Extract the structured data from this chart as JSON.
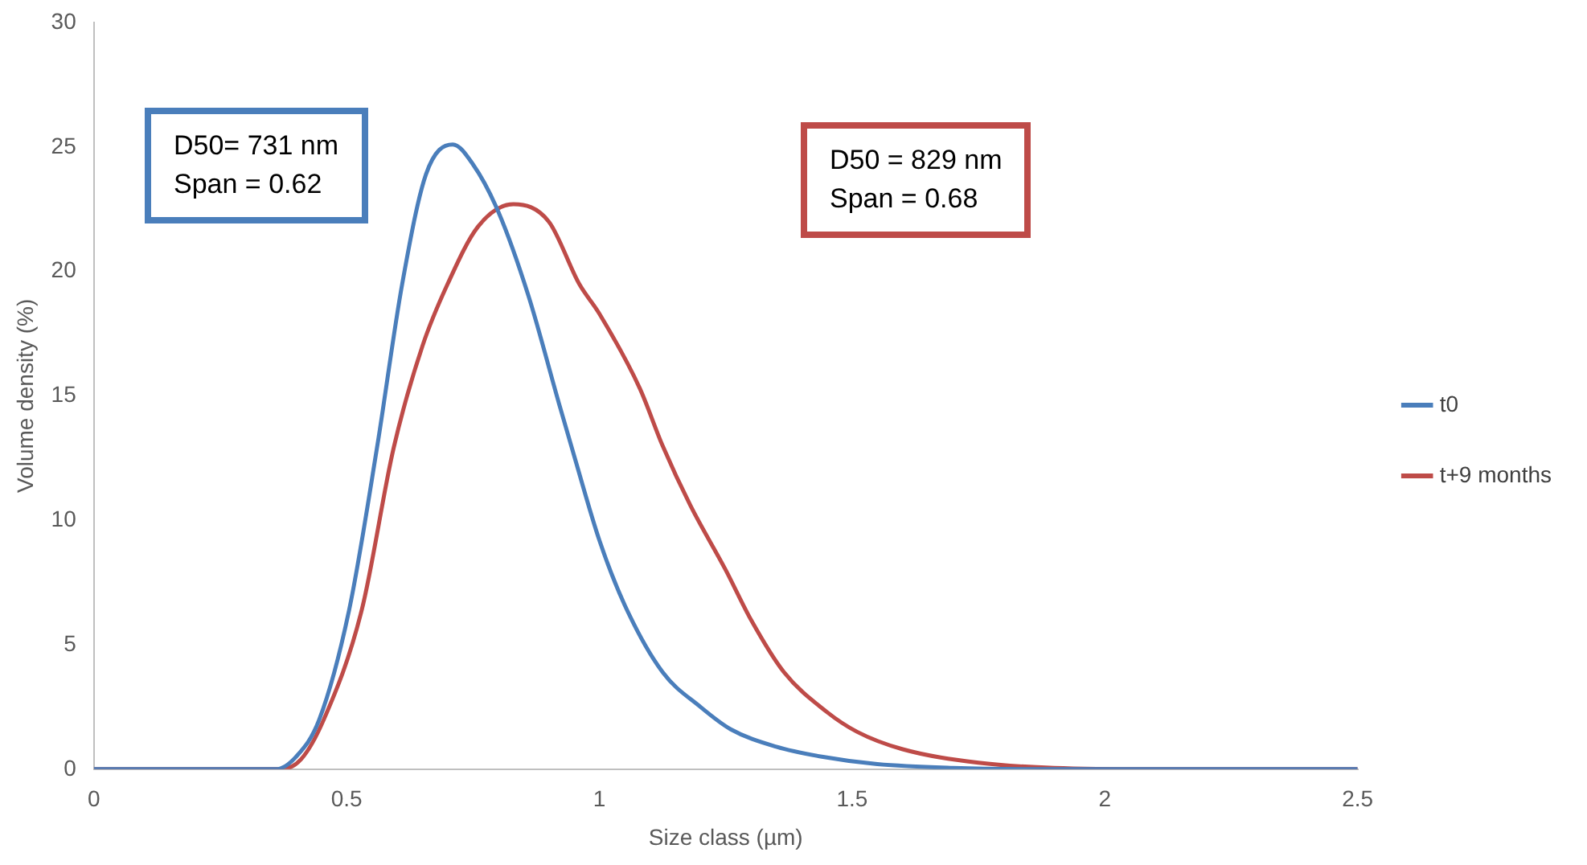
{
  "chart_data": {
    "type": "line",
    "xlabel": "Size class (µm)",
    "ylabel": "Volume density (%)",
    "xlim": [
      0,
      2.5
    ],
    "xticks": [
      0,
      0.5,
      1,
      1.5,
      2,
      2.5
    ],
    "ylim": [
      0,
      30
    ],
    "yticks": [
      0,
      5,
      10,
      15,
      20,
      25,
      30
    ],
    "grid": false,
    "legend": "right",
    "marker": "none",
    "line_style": "solid",
    "annotations": [
      "D50= 731 nm\nSpan = 0.62",
      "D50 = 829 nm\nSpan = 0.68"
    ],
    "series": [
      {
        "name": "t0",
        "color": "#4a7ebb",
        "x": [
          0,
          0.36,
          0.4,
          0.446,
          0.505,
          0.56,
          0.61,
          0.657,
          0.71,
          0.75,
          0.8,
          0.86,
          0.92,
          0.95,
          1.0,
          1.05,
          1.125,
          1.2,
          1.26,
          1.35,
          1.44,
          1.55,
          1.7,
          1.9,
          2.5
        ],
        "values": [
          0,
          0,
          0.5,
          2.0,
          6.4,
          12.9,
          19.5,
          23.9,
          25.1,
          24.3,
          22.4,
          19,
          14.7,
          12.6,
          9.2,
          6.6,
          3.9,
          2.5,
          1.6,
          0.9,
          0.5,
          0.2,
          0.05,
          0,
          0
        ]
      },
      {
        "name": "t+9 months",
        "color": "#be4b48",
        "x": [
          0,
          0.37,
          0.41,
          0.455,
          0.53,
          0.593,
          0.65,
          0.7,
          0.76,
          0.83,
          0.9,
          0.96,
          1.0,
          1.08,
          1.125,
          1.18,
          1.25,
          1.3,
          1.365,
          1.45,
          1.51,
          1.6,
          1.75,
          1.9,
          2.1,
          2.5
        ],
        "values": [
          0,
          0,
          0.4,
          2.0,
          6.4,
          12.9,
          17,
          19.5,
          21.8,
          22.7,
          22.0,
          19.5,
          18.3,
          15.3,
          13.0,
          10.6,
          8,
          6,
          3.9,
          2.3,
          1.5,
          0.8,
          0.26,
          0.05,
          0,
          0
        ]
      }
    ]
  }
}
